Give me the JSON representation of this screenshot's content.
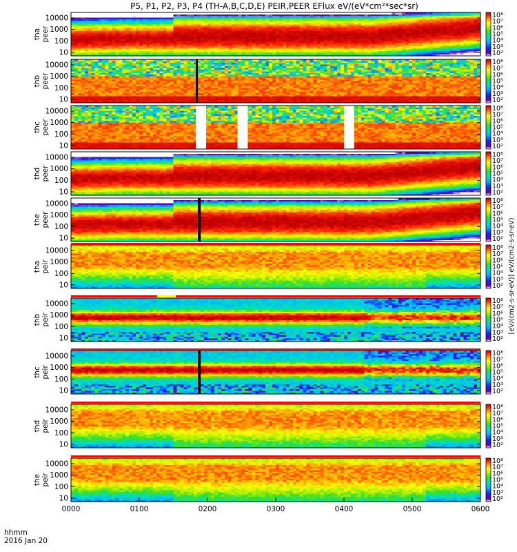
{
  "title": "P5, P1, P2, P3, P4 (TH-A,B,C,D,E) PEIR,PEER EFlux eV/(eV*cm²*sec*sr)",
  "footer": {
    "axis_name": "hhmm",
    "date": "2016 Jan 20"
  },
  "colorbar_label": "[eV/(cm2-s-sr-eV)] eV/(cm2-s-sr-eV)",
  "colors": {
    "scale": [
      "#ffffff",
      "#6a00a0",
      "#2020ff",
      "#00b4ff",
      "#00e0c0",
      "#30e030",
      "#b0f000",
      "#ffff00",
      "#ff9000",
      "#ff2000",
      "#c00000"
    ],
    "flag_red": "#ff0000",
    "flag_yellow": "#ffff00",
    "gap_black": "#000000"
  },
  "chart_data": {
    "type": "heatmap",
    "x_tick_labels": [
      "0000",
      "0100",
      "0200",
      "0300",
      "0400",
      "0500",
      "0600"
    ],
    "x_range": [
      "00:00",
      "06:00"
    ],
    "y_scale": "log",
    "y_tick_labels": [
      "10000",
      "1000",
      "100",
      "10"
    ],
    "panels": [
      {
        "probe": "tha",
        "product": "peer",
        "ylim": [
          5,
          30000
        ],
        "cbar_ticks": [
          "10⁸",
          "10⁷",
          "10⁶",
          "10⁵",
          "10⁴",
          "10³",
          "10²"
        ],
        "regime": "electron-hot",
        "gaps": [],
        "data_gap": []
      },
      {
        "probe": "thb",
        "product": "peer",
        "ylim": [
          5,
          30000
        ],
        "cbar_ticks": [
          "10⁸",
          "10⁷",
          "10⁶",
          "10⁵",
          "10⁴",
          "10³",
          "10²"
        ],
        "regime": "electron-noisy",
        "gaps": [],
        "data_gap": [
          [
            1.83,
            1.85
          ]
        ]
      },
      {
        "probe": "thc",
        "product": "peer",
        "ylim": [
          5,
          30000
        ],
        "cbar_ticks": [
          "10⁸",
          "10⁷",
          "10⁶",
          "10⁵",
          "10⁴",
          "10³",
          "10²"
        ],
        "regime": "electron-noisy",
        "gaps": [
          [
            1.83,
            1.98
          ],
          [
            2.44,
            2.59
          ],
          [
            4.0,
            4.15
          ]
        ],
        "data_gap": []
      },
      {
        "probe": "thd",
        "product": "peer",
        "ylim": [
          5,
          30000
        ],
        "cbar_ticks": [
          "10⁸",
          "10⁷",
          "10⁶",
          "10⁵",
          "10⁴",
          "10³",
          "10²"
        ],
        "regime": "electron-hot",
        "gaps": [],
        "data_gap": []
      },
      {
        "probe": "the",
        "product": "peer",
        "ylim": [
          5,
          30000
        ],
        "cbar_ticks": [
          "10⁸",
          "10⁷",
          "10⁶",
          "10⁵",
          "10⁴",
          "10³",
          "10²"
        ],
        "regime": "electron-hot",
        "gaps": [],
        "data_gap": [
          [
            1.86,
            1.9
          ]
        ]
      },
      {
        "probe": "tha",
        "product": "peir",
        "ylim": [
          5,
          30000
        ],
        "cbar_ticks": [
          "10⁸",
          "10⁷",
          "10⁶",
          "10⁵",
          "10⁴",
          "10³",
          "10²"
        ],
        "regime": "ion",
        "gaps": [],
        "data_gap": []
      },
      {
        "probe": "thb",
        "product": "peir",
        "ylim": [
          5,
          30000
        ],
        "cbar_ticks": [
          "10⁸",
          "10⁷",
          "10⁶",
          "10⁵",
          "10⁴",
          "10³",
          "10²"
        ],
        "regime": "ion-banded",
        "gaps": [],
        "data_gap": []
      },
      {
        "probe": "thc",
        "product": "peir",
        "ylim": [
          5,
          30000
        ],
        "cbar_ticks": [
          "10⁸",
          "10⁷",
          "10⁶",
          "10⁵",
          "10⁴",
          "10³",
          "10²"
        ],
        "regime": "ion-banded",
        "gaps": [],
        "data_gap": [
          [
            1.86,
            1.9
          ]
        ]
      },
      {
        "probe": "thd",
        "product": "peir",
        "ylim": [
          5,
          30000
        ],
        "cbar_ticks": [
          "10⁸",
          "10⁷",
          "10⁶",
          "10⁵",
          "10⁴",
          "10³",
          "10²"
        ],
        "regime": "ion",
        "gaps": [],
        "data_gap": []
      },
      {
        "probe": "the",
        "product": "peir",
        "ylim": [
          5,
          30000
        ],
        "cbar_ticks": [
          "10⁸",
          "10⁷",
          "10⁶",
          "10⁵",
          "10⁴",
          "10³",
          "10²"
        ],
        "regime": "ion",
        "gaps": [],
        "data_gap": []
      }
    ]
  }
}
